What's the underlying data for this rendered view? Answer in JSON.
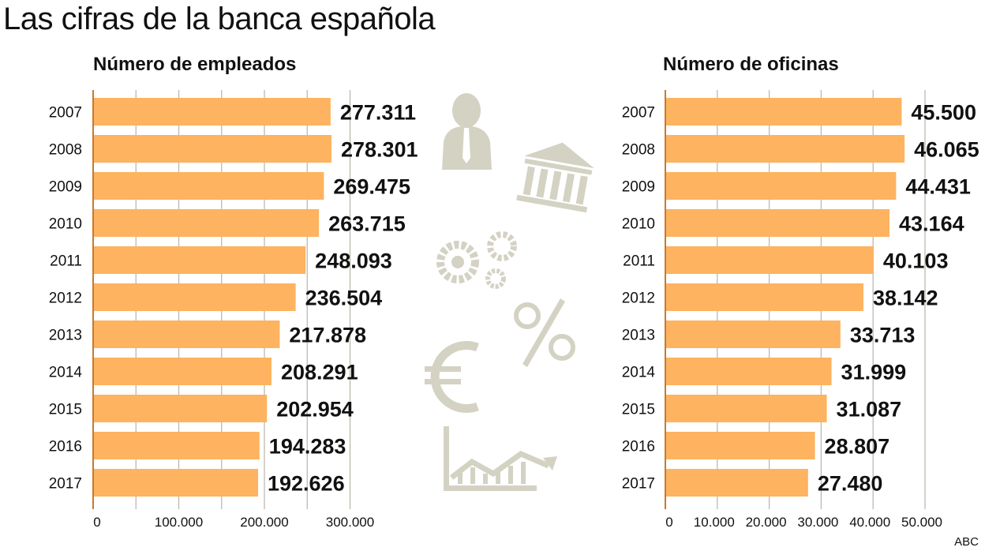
{
  "title": "Las cifras de la banca española",
  "source": "ABC",
  "colors": {
    "bar": "#fdb35f",
    "axis": "#c87a2c",
    "grid": "#bdb9ad",
    "icon": "#d4d2c3",
    "text": "#111111"
  },
  "chart_data": [
    {
      "type": "bar",
      "orientation": "horizontal",
      "title": "Número de empleados",
      "categories": [
        "2007",
        "2008",
        "2009",
        "2010",
        "2011",
        "2012",
        "2013",
        "2014",
        "2015",
        "2016",
        "2017"
      ],
      "values": [
        277311,
        278301,
        269475,
        263715,
        248093,
        236504,
        217878,
        208291,
        202954,
        194283,
        192626
      ],
      "value_labels": [
        "277.311",
        "278.301",
        "269.475",
        "263.715",
        "248.093",
        "236.504",
        "217.878",
        "208.291",
        "202.954",
        "194.283",
        "192.626"
      ],
      "xticks": [
        0,
        100000,
        200000,
        300000
      ],
      "xtick_labels": [
        "0",
        "100.000",
        "200.000",
        "300.000"
      ],
      "grid_step": 50000,
      "xlim": [
        0,
        300000
      ],
      "grid": true
    },
    {
      "type": "bar",
      "orientation": "horizontal",
      "title": "Número de oficinas",
      "categories": [
        "2007",
        "2008",
        "2009",
        "2010",
        "2011",
        "2012",
        "2013",
        "2014",
        "2015",
        "2016",
        "2017"
      ],
      "values": [
        45500,
        46065,
        44431,
        43164,
        40103,
        38142,
        33713,
        31999,
        31087,
        28807,
        27480
      ],
      "value_labels": [
        "45.500",
        "46.065",
        "44.431",
        "43.164",
        "40.103",
        "38.142",
        "33.713",
        "31.999",
        "31.087",
        "28.807",
        "27.480"
      ],
      "xticks": [
        0,
        10000,
        20000,
        30000,
        40000,
        50000
      ],
      "xtick_labels": [
        "0",
        "10.000",
        "20.000",
        "30.000",
        "40.000",
        "50.000"
      ],
      "grid_step": 10000,
      "xlim": [
        0,
        50000
      ],
      "grid": true
    }
  ]
}
